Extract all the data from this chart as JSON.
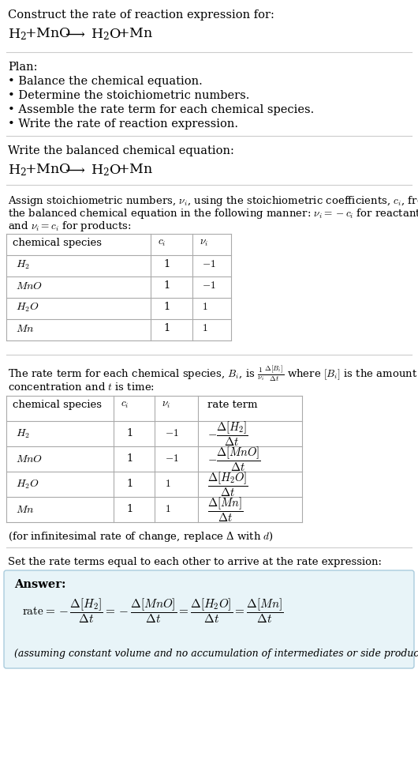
{
  "bg_color": "#ffffff",
  "answer_box_color": "#e8f4f8",
  "answer_box_border": "#aaccdd",
  "table_line_color": "#aaaaaa",
  "text_color": "#000000",
  "divider_color": "#cccccc",
  "s1_line1": "Construct the rate of reaction expression for:",
  "s1_eq": "$\\mathregular{H_2 + MnO \\  \\longrightarrow \\ H_2O + Mn}$",
  "plan_header": "Plan:",
  "plan_items": [
    "• Balance the chemical equation.",
    "• Determine the stoichiometric numbers.",
    "• Assemble the rate term for each chemical species.",
    "• Write the rate of reaction expression."
  ],
  "s3_header": "Write the balanced chemical equation:",
  "s3_eq": "$\\mathregular{H_2 + MnO \\  \\longrightarrow \\ H_2O + Mn}$",
  "s4_line1": "Assign stoichiometric numbers, $\\nu_i$, using the stoichiometric coefficients, $c_i$, from",
  "s4_line2": "the balanced chemical equation in the following manner: $\\nu_i = -c_i$ for reactants",
  "s4_line3": "and $\\nu_i = c_i$ for products:",
  "t1_col_headers": [
    "chemical species",
    "$c_i$",
    "$\\nu_i$"
  ],
  "t1_rows": [
    [
      "$H_2$",
      "1",
      "$-1$"
    ],
    [
      "$MnO$",
      "1",
      "$-1$"
    ],
    [
      "$H_2O$",
      "1",
      "$1$"
    ],
    [
      "$Mn$",
      "1",
      "$1$"
    ]
  ],
  "s5_line1": "The rate term for each chemical species, $B_i$, is $\\frac{1}{\\nu_i}\\frac{\\Delta[B_i]}{\\Delta t}$ where $[B_i]$ is the amount",
  "s5_line2": "concentration and $t$ is time:",
  "t2_col_headers": [
    "chemical species",
    "$c_i$",
    "$\\nu_i$",
    "rate term"
  ],
  "t2_rows": [
    [
      "$H_2$",
      "1",
      "$-1$",
      "$-\\frac{\\Delta[H_2]}{\\Delta t}$"
    ],
    [
      "$MnO$",
      "1",
      "$-1$",
      "$-\\frac{\\Delta[MnO]}{\\Delta t}$"
    ],
    [
      "$H_2O$",
      "1",
      "$1$",
      "$\\frac{\\Delta[H_2O]}{\\Delta t}$"
    ],
    [
      "$Mn$",
      "1",
      "$1$",
      "$\\frac{\\Delta[Mn]}{\\Delta t}$"
    ]
  ],
  "s5_note": "(for infinitesimal rate of change, replace Δ with $d$)",
  "s6_header": "Set the rate terms equal to each other to arrive at the rate expression:",
  "answer_label": "Answer:",
  "answer_eq": "$\\mathrm{rate} = -\\dfrac{\\Delta[H_2]}{\\Delta t} = -\\dfrac{\\Delta[MnO]}{\\Delta t} = \\dfrac{\\Delta[H_2O]}{\\Delta t} = \\dfrac{\\Delta[Mn]}{\\Delta t}$",
  "answer_note": "(assuming constant volume and no accumulation of intermediates or side products)"
}
